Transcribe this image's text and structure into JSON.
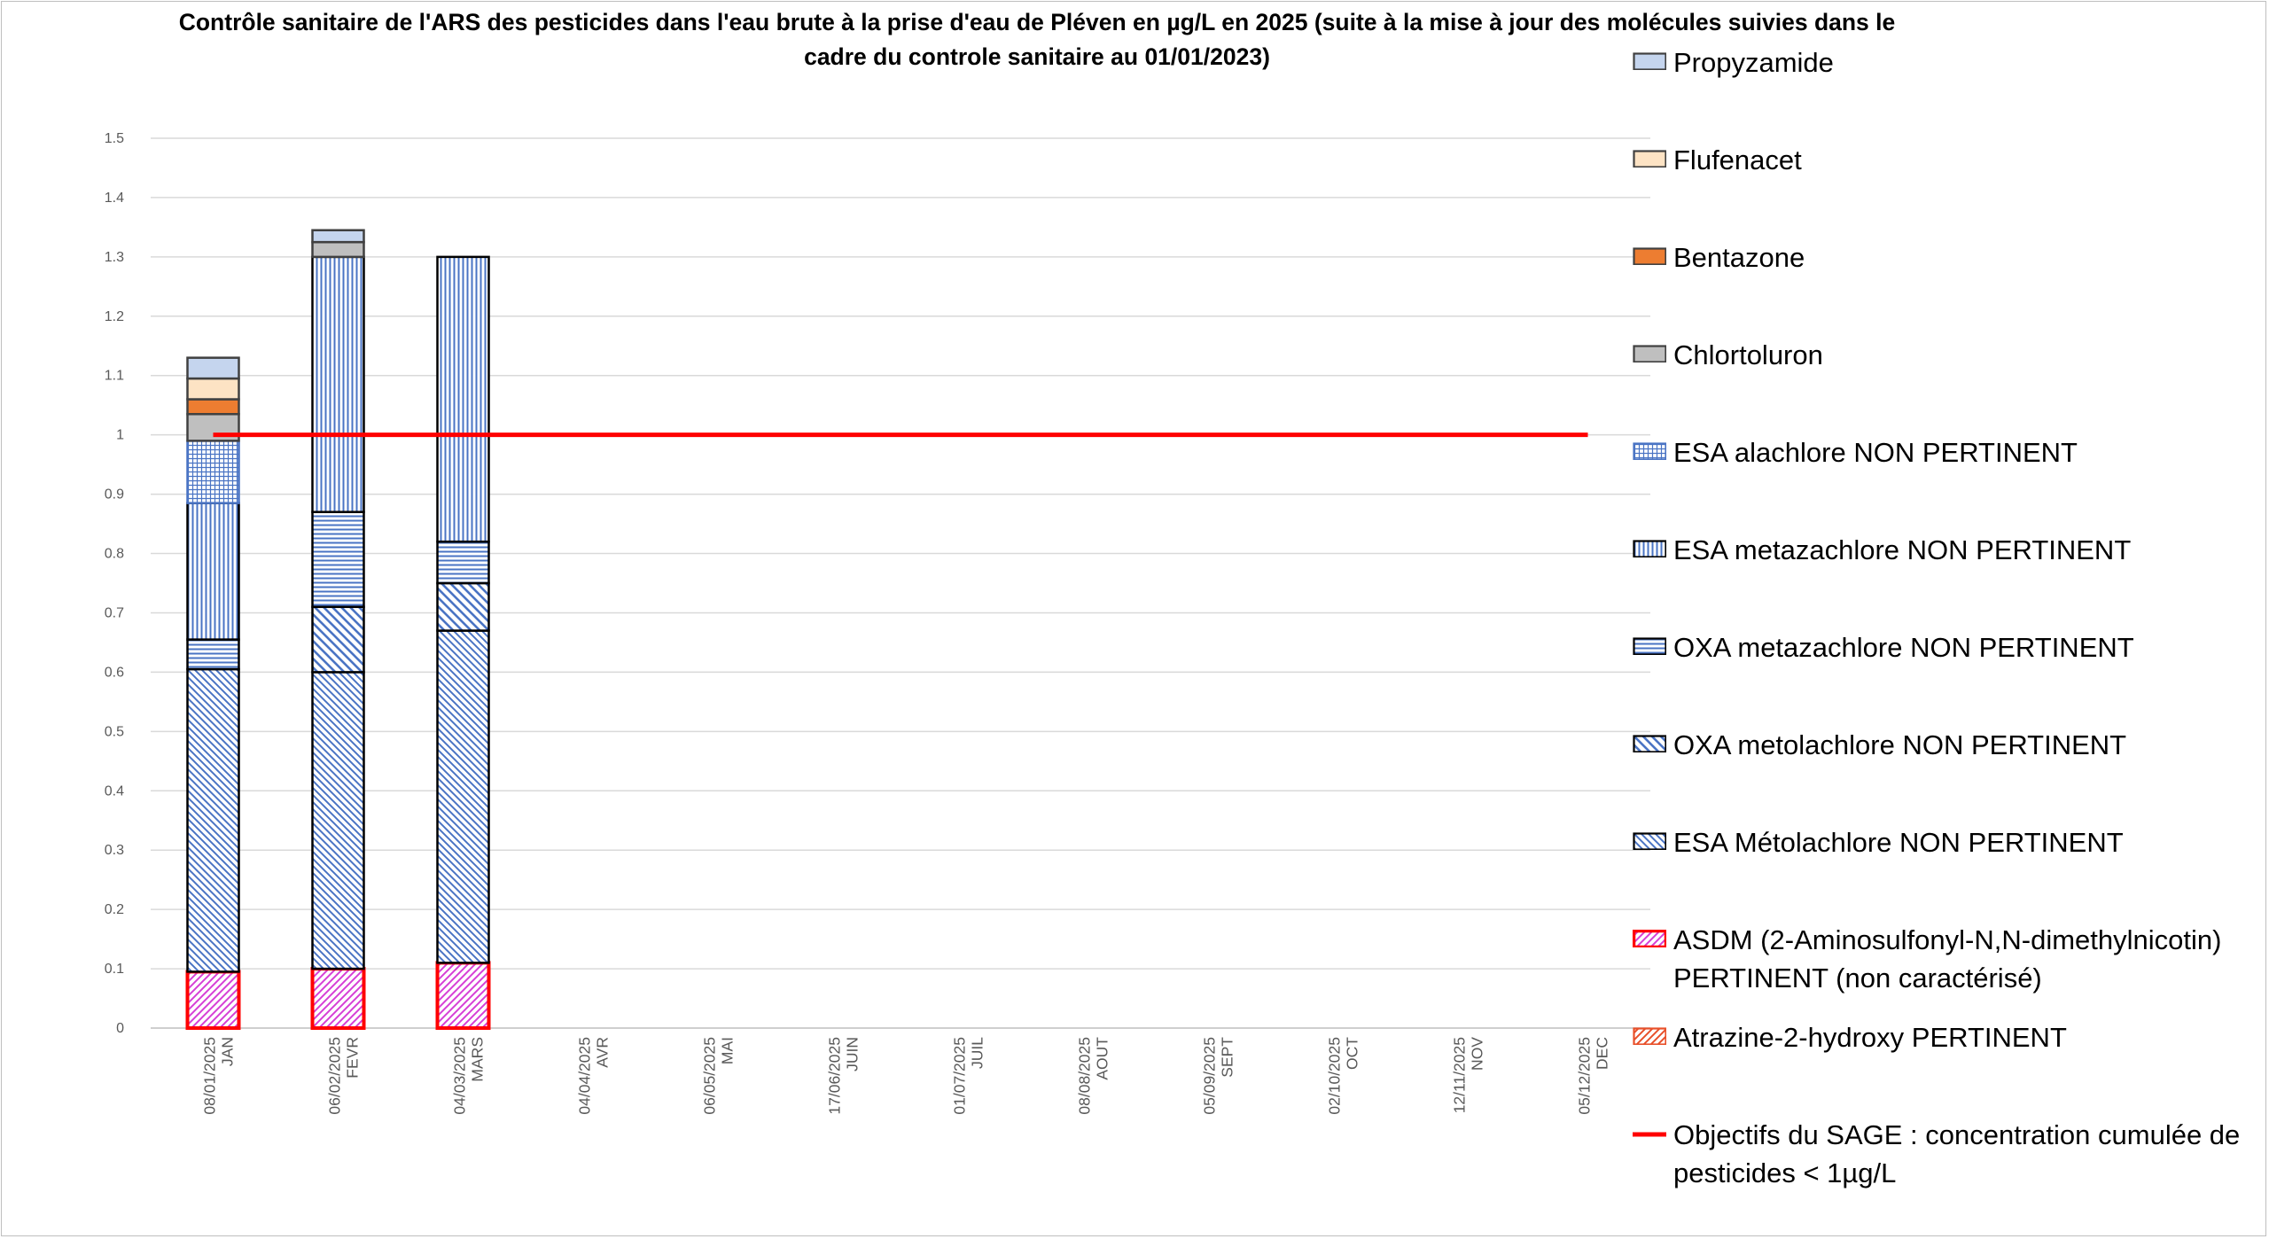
{
  "chart_data": {
    "type": "bar",
    "stacked": true,
    "title": [
      "Contrôle sanitaire de l'ARS des pesticides dans l'eau brute à la prise d'eau de Pléven en µg/L en 2025  (suite à la mise à jour des molécules suivies dans le",
      "cadre du controle sanitaire au 01/01/2023)"
    ],
    "categories": [
      [
        "08/01/2025",
        "JAN"
      ],
      [
        "06/02/2025",
        "FEVR"
      ],
      [
        "04/03/2025",
        "MARS"
      ],
      [
        "04/04/2025",
        "AVR"
      ],
      [
        "06/05/2025",
        "MAI"
      ],
      [
        "17/06/2025",
        "JUIN"
      ],
      [
        "01/07/2025",
        "JUIL"
      ],
      [
        "08/08/2025",
        "AOUT"
      ],
      [
        "05/09/2025",
        "SEPT"
      ],
      [
        "02/10/2025",
        "OCT"
      ],
      [
        "12/11/2025",
        "NOV"
      ],
      [
        "05/12/2025",
        "DEC"
      ]
    ],
    "ylim": [
      0,
      1.5
    ],
    "yticks": [
      "0",
      "0.1",
      "0.2",
      "0.3",
      "0.4",
      "0.5",
      "0.6",
      "0.7",
      "0.8",
      "0.9",
      "1",
      "1.1",
      "1.2",
      "1.3",
      "1.4",
      "1.5"
    ],
    "grid": true,
    "legend_position": "right",
    "series": [
      {
        "name": "Atrazine-2-hydroxy PERTINENT",
        "pattern": "diag-right",
        "color": "#e8502a",
        "border": "#e8502a",
        "values": [
          0,
          0,
          0,
          null,
          null,
          null,
          null,
          null,
          null,
          null,
          null,
          null
        ]
      },
      {
        "name": "ASDM (2-Aminosulfonyl-N,N-dimethylnicotin) PERTINENT (non caractérisé)",
        "pattern": "diag-right",
        "color": "#d63fd6",
        "border": "#ff0000",
        "values": [
          0.095,
          0.1,
          0.11,
          null,
          null,
          null,
          null,
          null,
          null,
          null,
          null,
          null
        ]
      },
      {
        "name": "ESA Métolachlore NON PERTINENT",
        "pattern": "diag-left",
        "color": "#4a74c4",
        "border": "#000000",
        "values": [
          0.51,
          0.5,
          0.56,
          null,
          null,
          null,
          null,
          null,
          null,
          null,
          null,
          null
        ]
      },
      {
        "name": "OXA metolachlore NON PERTINENT",
        "pattern": "diag-left-wide",
        "color": "#4a74c4",
        "border": "#000000",
        "values": [
          0,
          0.11,
          0.08,
          null,
          null,
          null,
          null,
          null,
          null,
          null,
          null,
          null
        ]
      },
      {
        "name": "OXA metazachlore NON PERTINENT",
        "pattern": "horizontal",
        "color": "#4a74c4",
        "border": "#000000",
        "values": [
          0.05,
          0.16,
          0.07,
          null,
          null,
          null,
          null,
          null,
          null,
          null,
          null,
          null
        ]
      },
      {
        "name": "ESA metazachlore NON PERTINENT",
        "pattern": "vertical",
        "color": "#4a74c4",
        "border": "#000000",
        "values": [
          0.23,
          0.43,
          0.48,
          null,
          null,
          null,
          null,
          null,
          null,
          null,
          null,
          null
        ]
      },
      {
        "name": "ESA alachlore NON PERTINENT",
        "pattern": "grid",
        "color": "#4a74c4",
        "border": "#4a74c4",
        "values": [
          0.105,
          0,
          0,
          null,
          null,
          null,
          null,
          null,
          null,
          null,
          null,
          null
        ]
      },
      {
        "name": "Chlortoluron",
        "pattern": "solid",
        "color": "#bfbfbf",
        "border": "#404040",
        "values": [
          0.045,
          0.025,
          0,
          null,
          null,
          null,
          null,
          null,
          null,
          null,
          null,
          null
        ]
      },
      {
        "name": "Bentazone",
        "pattern": "solid",
        "color": "#ed7d31",
        "border": "#404040",
        "values": [
          0.025,
          0,
          0,
          null,
          null,
          null,
          null,
          null,
          null,
          null,
          null,
          null
        ]
      },
      {
        "name": "Flufenacet",
        "pattern": "solid",
        "color": "#fde3c4",
        "border": "#404040",
        "values": [
          0.035,
          0,
          0,
          null,
          null,
          null,
          null,
          null,
          null,
          null,
          null,
          null
        ]
      },
      {
        "name": "Propyzamide",
        "pattern": "solid",
        "color": "#c5d5ee",
        "border": "#404040",
        "values": [
          0.035,
          0.02,
          0,
          null,
          null,
          null,
          null,
          null,
          null,
          null,
          null,
          null
        ]
      }
    ],
    "threshold_line": {
      "name": "Objectifs du SAGE : concentration cumulée de pesticides < 1µg/L",
      "value": 1,
      "color": "#ff0000",
      "from_category": 0,
      "to_category": 11
    },
    "legend_order": [
      {
        "label": [
          "Propyzamide"
        ],
        "series": 10
      },
      {
        "label": [
          "Flufenacet"
        ],
        "series": 9
      },
      {
        "label": [
          "Bentazone"
        ],
        "series": 8
      },
      {
        "label": [
          "Chlortoluron"
        ],
        "series": 7
      },
      {
        "label": [
          "ESA alachlore NON PERTINENT"
        ],
        "series": 6
      },
      {
        "label": [
          "ESA metazachlore NON PERTINENT"
        ],
        "series": 5
      },
      {
        "label": [
          "OXA metazachlore NON PERTINENT"
        ],
        "series": 4
      },
      {
        "label": [
          "OXA metolachlore NON PERTINENT"
        ],
        "series": 3
      },
      {
        "label": [
          "ESA Métolachlore NON PERTINENT"
        ],
        "series": 2
      },
      {
        "label": [
          "ASDM (2-Aminosulfonyl-N,N-dimethylnicotin)",
          "PERTINENT (non caractérisé)"
        ],
        "series": 1
      },
      {
        "label": [
          "Atrazine-2-hydroxy PERTINENT"
        ],
        "series": 0
      },
      {
        "label": [
          "Objectifs du SAGE : concentration cumulée de",
          "pesticides < 1µg/L"
        ],
        "series": "threshold"
      }
    ]
  }
}
